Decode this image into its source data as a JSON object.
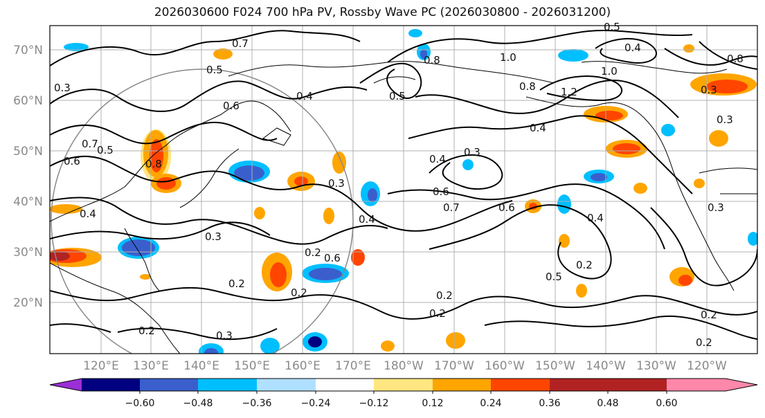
{
  "title": "2026030600 F024 700 hPa PV, Rossby Wave PC (2026030800 - 2026031200)",
  "lat_labels": [
    "70°N",
    "60°N",
    "50°N",
    "40°N",
    "30°N",
    "20°N"
  ],
  "lon_labels": [
    "120°E",
    "130°E",
    "140°E",
    "150°E",
    "160°E",
    "170°E",
    "180°W",
    "170°W",
    "160°W",
    "150°W",
    "140°W",
    "130°W",
    "120°W"
  ],
  "colorbar": {
    "colors": [
      "#9b30d8",
      "#000080",
      "#3a5fcd",
      "#00bfff",
      "#b0e0ff",
      "#ffffff",
      "#ffe680",
      "#ffa500",
      "#ff4500",
      "#b22222",
      "#ff88aa"
    ],
    "tick_labels": [
      "−0.60",
      "−0.48",
      "−0.36",
      "−0.24",
      "−0.12",
      "0.12",
      "0.24",
      "0.36",
      "0.48",
      "0.60"
    ]
  },
  "contour_labels": [
    "0.7",
    "0.5",
    "0.4",
    "0.3",
    "0.8",
    "1.0",
    "0.5",
    "0.6",
    "0.3",
    "0.4",
    "0.6",
    "0.7",
    "0.4",
    "0.2",
    "0.3",
    "0.6",
    "0.2",
    "0.2",
    "0.3",
    "0.2",
    "0.2",
    "0.5",
    "0.2",
    "0.4",
    "1.2",
    "1.0",
    "0.8",
    "0.4",
    "0.3",
    "0.8",
    "0.5",
    "0.3",
    "0.4",
    "0.2",
    "0.2",
    "0.3",
    "0.7",
    "0.5",
    "0.6",
    "0.3",
    "0.2",
    "0.8",
    "0.4",
    "0.6"
  ]
}
